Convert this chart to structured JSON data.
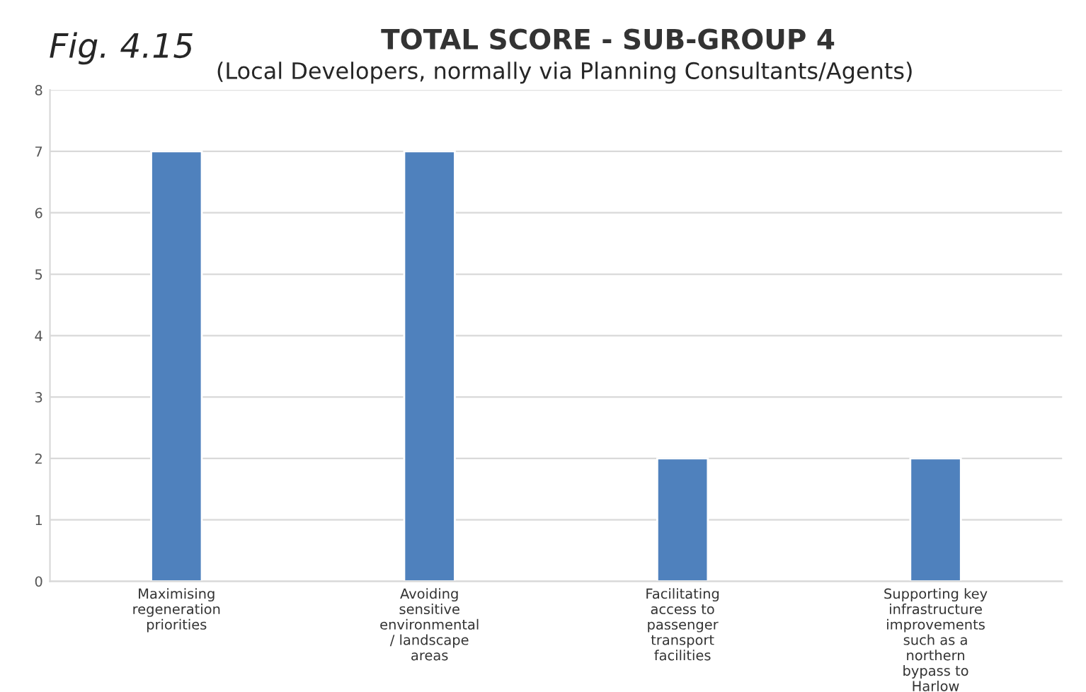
{
  "chart_data": {
    "type": "bar",
    "title": "TOTAL SCORE - SUB-GROUP 4",
    "subtitle": "(Local Developers, normally via Planning Consultants/Agents)",
    "annotations": [
      "Fig. 4.15"
    ],
    "categories": [
      "Maximising\nregeneration\npriorities",
      "Avoiding\nsensitive\nenvironmental\n/ landscape\nareas",
      "Facilitating\naccess to\npassenger\ntransport\nfacilities",
      "Supporting key\ninfrastructure\nimprovements\nsuch as a\nnorthern\nbypass to\nHarlow"
    ],
    "values": [
      7,
      7,
      2,
      2
    ],
    "color": "#4f81bd",
    "ylim": [
      0,
      8
    ],
    "yticks": [
      0,
      1,
      2,
      3,
      4,
      5,
      6,
      7,
      8
    ],
    "grid": "y",
    "legend": false
  }
}
